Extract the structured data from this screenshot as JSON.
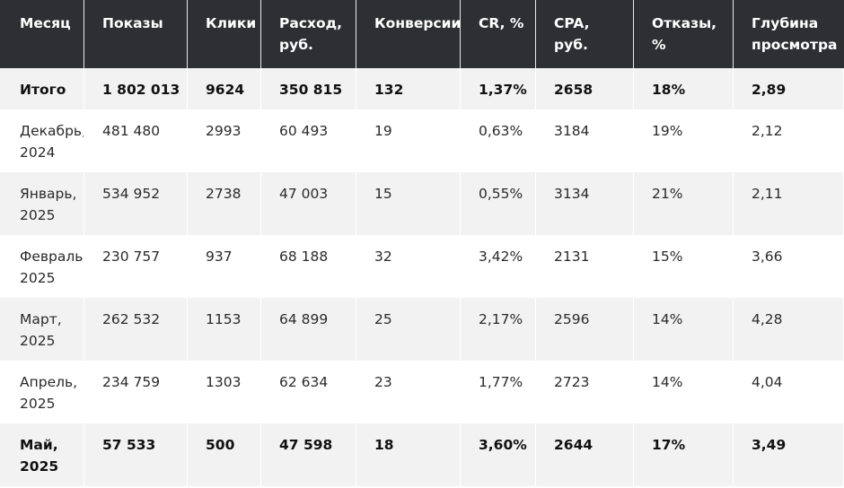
{
  "table": {
    "headers": [
      [
        "Месяц"
      ],
      [
        "Показы"
      ],
      [
        "Клики"
      ],
      [
        "Расход,",
        "руб."
      ],
      [
        "Конверсии"
      ],
      [
        "CR, %"
      ],
      [
        "CPA,",
        "руб."
      ],
      [
        "Отказы,",
        "%"
      ],
      [
        "Глубина",
        "просмотра"
      ]
    ],
    "total": [
      "Итого",
      "1 802 013",
      "9624",
      "350 815",
      "132",
      "1,37%",
      "2658",
      "18%",
      "2,89"
    ],
    "rows": [
      {
        "month": [
          "Декабрь,",
          "2024"
        ],
        "cells": [
          "481 480",
          "2993",
          "60 493",
          "19",
          "0,63%",
          "3184",
          "19%",
          "2,12"
        ]
      },
      {
        "month": [
          "Январь,",
          "2025"
        ],
        "cells": [
          "534 952",
          "2738",
          "47 003",
          "15",
          "0,55%",
          "3134",
          "21%",
          "2,11"
        ]
      },
      {
        "month": [
          "Февраль,",
          "2025"
        ],
        "cells": [
          "230 757",
          "937",
          "68 188",
          "32",
          "3,42%",
          "2131",
          "15%",
          "3,66"
        ]
      },
      {
        "month": [
          "Март,",
          "2025"
        ],
        "cells": [
          "262 532",
          "1153",
          "64 899",
          "25",
          "2,17%",
          "2596",
          "14%",
          "4,28"
        ]
      },
      {
        "month": [
          "Апрель,",
          "2025"
        ],
        "cells": [
          "234 759",
          "1303",
          "62 634",
          "23",
          "1,77%",
          "2723",
          "14%",
          "4,04"
        ]
      },
      {
        "month": [
          "Май,",
          "2025"
        ],
        "cells": [
          "57 533",
          "500",
          "47 598",
          "18",
          "3,60%",
          "2644",
          "17%",
          "3,49"
        ]
      }
    ],
    "colors": {
      "header_bg": "#2e2f33",
      "header_text": "#ffffff",
      "stripe_bg": "#f2f2f2",
      "row_bg": "#ffffff"
    }
  }
}
